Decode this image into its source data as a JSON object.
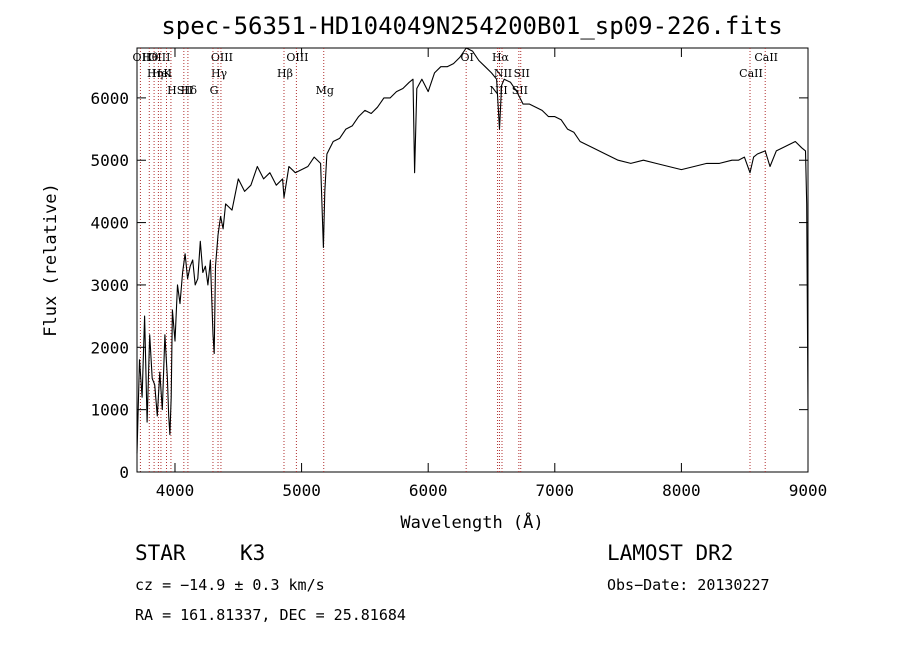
{
  "chart_data": {
    "type": "line",
    "title": "spec-56351-HD104049N254200B01_sp09-226.fits",
    "xlabel": "Wavelength (Å)",
    "ylabel": "Flux (relative)",
    "xlim": [
      3700,
      9000
    ],
    "ylim": [
      0,
      6800
    ],
    "x_ticks": [
      4000,
      5000,
      6000,
      7000,
      8000,
      9000
    ],
    "y_ticks": [
      0,
      1000,
      2000,
      3000,
      4000,
      5000,
      6000
    ],
    "x_tick_labels": [
      "4000",
      "5000",
      "6000",
      "7000",
      "8000",
      "9000"
    ],
    "y_tick_labels": [
      "0",
      "1000",
      "2000",
      "3000",
      "4000",
      "5000",
      "6000"
    ],
    "grid": false,
    "series": [
      {
        "x": [
          3700,
          3720,
          3740,
          3760,
          3780,
          3800,
          3820,
          3840,
          3860,
          3880,
          3900,
          3920,
          3940,
          3950,
          3960,
          3970,
          3980,
          4000,
          4020,
          4040,
          4060,
          4080,
          4100,
          4120,
          4140,
          4160,
          4180,
          4200,
          4220,
          4240,
          4260,
          4280,
          4300,
          4310,
          4320,
          4340,
          4360,
          4380,
          4400,
          4450,
          4500,
          4550,
          4600,
          4650,
          4700,
          4750,
          4800,
          4850,
          4861,
          4900,
          4950,
          5000,
          5050,
          5100,
          5150,
          5172,
          5183,
          5200,
          5250,
          5300,
          5350,
          5400,
          5450,
          5500,
          5550,
          5600,
          5650,
          5700,
          5750,
          5800,
          5850,
          5880,
          5893,
          5910,
          5950,
          6000,
          6050,
          6100,
          6150,
          6200,
          6250,
          6300,
          6350,
          6400,
          6450,
          6500,
          6540,
          6563,
          6580,
          6600,
          6650,
          6700,
          6750,
          6800,
          6850,
          6900,
          6950,
          7000,
          7050,
          7100,
          7150,
          7200,
          7300,
          7400,
          7500,
          7600,
          7700,
          7800,
          7900,
          8000,
          8100,
          8200,
          8300,
          8400,
          8450,
          8498,
          8542,
          8570,
          8600,
          8662,
          8700,
          8750,
          8800,
          8850,
          8900,
          8950,
          8980,
          8990,
          9000
        ],
        "values": [
          300,
          1800,
          1200,
          2500,
          800,
          2200,
          1500,
          1400,
          900,
          1600,
          1000,
          2200,
          1500,
          900,
          600,
          1200,
          2600,
          2100,
          3000,
          2700,
          3200,
          3500,
          3100,
          3300,
          3400,
          3000,
          3100,
          3700,
          3200,
          3300,
          3000,
          3400,
          2200,
          1900,
          3300,
          3800,
          4100,
          3900,
          4300,
          4200,
          4700,
          4500,
          4600,
          4900,
          4700,
          4800,
          4600,
          4700,
          4400,
          4900,
          4800,
          4850,
          4900,
          5050,
          4950,
          3600,
          4500,
          5100,
          5300,
          5350,
          5500,
          5550,
          5700,
          5800,
          5750,
          5850,
          6000,
          6000,
          6100,
          6150,
          6250,
          6300,
          4800,
          6150,
          6300,
          6100,
          6400,
          6500,
          6500,
          6550,
          6650,
          6800,
          6750,
          6600,
          6500,
          6400,
          6300,
          5500,
          6200,
          6300,
          6250,
          6100,
          5900,
          5900,
          5850,
          5800,
          5700,
          5700,
          5650,
          5500,
          5450,
          5300,
          5200,
          5100,
          5000,
          4950,
          5000,
          4950,
          4900,
          4850,
          4900,
          4950,
          4950,
          5000,
          5000,
          5050,
          4800,
          5050,
          5100,
          5150,
          4900,
          5150,
          5200,
          5250,
          5300,
          5200,
          5150,
          4300,
          1000
        ]
      }
    ],
    "line_markers": [
      {
        "label": "Hθ",
        "x": 3797
      },
      {
        "label": "K",
        "x": 3933
      },
      {
        "label": "Hδ",
        "x": 4102
      },
      {
        "label": "OII",
        "x": 3727
      },
      {
        "label": "HeI",
        "x": 3889
      },
      {
        "label": "SII",
        "x": 4070
      },
      {
        "label": "OIII",
        "x": 4363
      },
      {
        "label": "Hγ",
        "x": 4340
      },
      {
        "label": "G",
        "x": 4300
      },
      {
        "label": "OIII",
        "x": 3869
      },
      {
        "label": "Hη",
        "x": 3835
      },
      {
        "label": "H",
        "x": 3968
      },
      {
        "label": "OIII",
        "x": 4959
      },
      {
        "label": "Hβ",
        "x": 4861
      },
      {
        "label": "Mg",
        "x": 5175
      },
      {
        "label": "OI",
        "x": 6300
      },
      {
        "label": "NII",
        "x": 6583
      },
      {
        "label": "SII",
        "x": 6716
      },
      {
        "label": "Hα",
        "x": 6563
      },
      {
        "label": "SII",
        "x": 6731
      },
      {
        "label": "NII",
        "x": 6548
      },
      {
        "label": "CaII",
        "x": 8662
      },
      {
        "label": "CaII",
        "x": 8542
      }
    ]
  },
  "info": {
    "class": "STAR",
    "subclass": "K3",
    "survey": "LAMOST DR2",
    "cz": "cz = −14.9 ± 0.3 km/s",
    "obs_date": "Obs−Date: 20130227",
    "radec": "RA = 161.81337, DEC =  25.81684"
  },
  "colors": {
    "spectrum": "#000000",
    "marker_line": "#b03030"
  }
}
